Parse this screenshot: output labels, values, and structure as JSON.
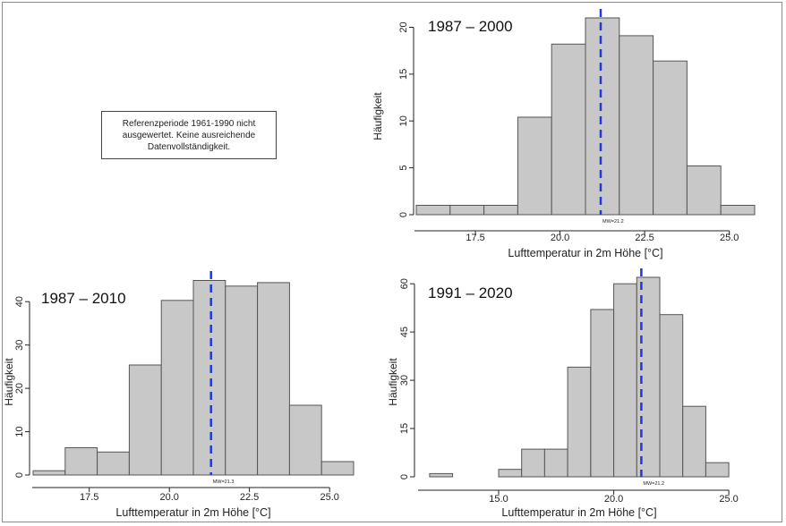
{
  "note": "Referenzperiode 1961-1990 nicht ausgewertet. Keine ausreichende Datenvollständigkeit.",
  "chart_data": [
    {
      "type": "bar",
      "title": "1987 – 2000",
      "xlabel": "Lufttemperatur in 2m Höhe [°C]",
      "ylabel": "Häufigkeit",
      "xlim": [
        15.75,
        25.75
      ],
      "ylim": [
        0,
        21
      ],
      "xticks": [
        17.5,
        20.0,
        22.5,
        25.0
      ],
      "xtick_labels": [
        "17.5",
        "20.0",
        "22.5",
        "25.0"
      ],
      "yticks": [
        0,
        5,
        10,
        15,
        20
      ],
      "ytick_labels": [
        "0",
        "5",
        "10",
        "15",
        "20"
      ],
      "bins": [
        [
          15.75,
          16.75
        ],
        [
          16.75,
          17.75
        ],
        [
          17.75,
          18.75
        ],
        [
          18.75,
          19.75
        ],
        [
          19.75,
          20.75
        ],
        [
          20.75,
          21.75
        ],
        [
          21.75,
          22.75
        ],
        [
          22.75,
          23.75
        ],
        [
          23.75,
          24.75
        ],
        [
          24.75,
          25.75
        ]
      ],
      "values": [
        1,
        1,
        1,
        10.4,
        18.2,
        21,
        19.1,
        16.4,
        5.2,
        1
      ],
      "mean": 21.2,
      "mean_label": "MW=21.2",
      "bar_color": "#c8c8c8",
      "mean_color": "#1f3bd1"
    },
    {
      "type": "bar",
      "title": "1987 – 2010",
      "xlabel": "Lufttemperatur in 2m Höhe [°C]",
      "ylabel": "Häufigkeit",
      "xlim": [
        15.75,
        25.75
      ],
      "ylim": [
        0,
        45
      ],
      "xticks": [
        17.5,
        20.0,
        22.5,
        25.0
      ],
      "xtick_labels": [
        "17.5",
        "20.0",
        "22.5",
        "25.0"
      ],
      "yticks": [
        0,
        10,
        20,
        30,
        40
      ],
      "ytick_labels": [
        "0",
        "10",
        "20",
        "30",
        "40"
      ],
      "bins": [
        [
          15.75,
          16.75
        ],
        [
          16.75,
          17.75
        ],
        [
          17.75,
          18.75
        ],
        [
          18.75,
          19.75
        ],
        [
          19.75,
          20.75
        ],
        [
          20.75,
          21.75
        ],
        [
          21.75,
          22.75
        ],
        [
          22.75,
          23.75
        ],
        [
          23.75,
          24.75
        ],
        [
          24.75,
          25.75
        ]
      ],
      "values": [
        1,
        6.3,
        5.3,
        25.4,
        40.3,
        44.9,
        43.6,
        44.4,
        16.1,
        3.1
      ],
      "mean": 21.3,
      "mean_label": "MW=21.3",
      "bar_color": "#c8c8c8",
      "mean_color": "#1f3bd1"
    },
    {
      "type": "bar",
      "title": "1991 – 2020",
      "xlabel": "Lufttemperatur in 2m Höhe [°C]",
      "ylabel": "Häufigkeit",
      "xlim": [
        11.5,
        25.5
      ],
      "ylim": [
        0,
        62
      ],
      "xticks": [
        15.0,
        20.0,
        25.0
      ],
      "xtick_labels": [
        "15.0",
        "20.0",
        "25.0"
      ],
      "yticks": [
        0,
        15,
        30,
        45,
        60
      ],
      "ytick_labels": [
        "0",
        "15",
        "30",
        "45",
        "60"
      ],
      "bins": [
        [
          12.0,
          13.0
        ],
        [
          13.0,
          14.0
        ],
        [
          14.0,
          15.0
        ],
        [
          15.0,
          16.0
        ],
        [
          16.0,
          17.0
        ],
        [
          17.0,
          18.0
        ],
        [
          18.0,
          19.0
        ],
        [
          19.0,
          20.0
        ],
        [
          20.0,
          21.0
        ],
        [
          21.0,
          22.0
        ],
        [
          22.0,
          23.0
        ],
        [
          23.0,
          24.0
        ],
        [
          24.0,
          25.0
        ]
      ],
      "values": [
        1,
        0,
        0,
        2.3,
        8.6,
        8.6,
        34.1,
        52,
        60,
        62,
        50.4,
        21.9,
        4.4
      ],
      "mean": 21.2,
      "mean_label": "MW=21.2",
      "bar_color": "#c8c8c8",
      "mean_color": "#1f3bd1"
    }
  ]
}
